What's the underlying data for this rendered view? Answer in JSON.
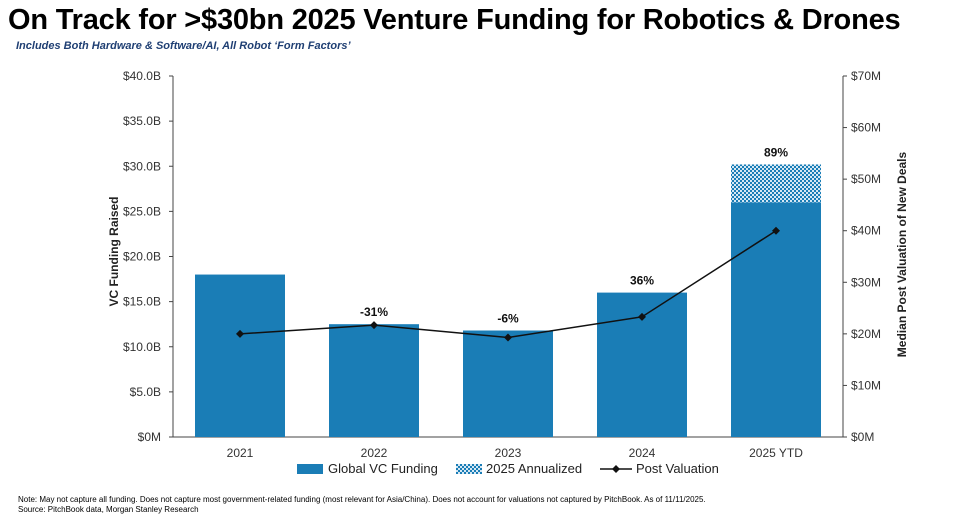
{
  "header": {
    "title": "On Track for >$30bn 2025 Venture Funding for Robotics & Drones",
    "subtitle": "Includes Both Hardware & Software/AI, All Robot ‘Form Factors’"
  },
  "footer": {
    "note": "Note: May not capture all funding. Does not capture most government-related funding (most relevant for Asia/China). Does not account for valuations not captured by PitchBook. As of 11/11/2025.",
    "source": "Source: PitchBook data, Morgan Stanley Research"
  },
  "colors": {
    "bar": "#1a7db6",
    "annualized_bg": "#d6e8f4",
    "line": "#111111",
    "axis": "#444444"
  },
  "chart_data": {
    "type": "bar",
    "categories": [
      "2021",
      "2022",
      "2023",
      "2024",
      "2025 YTD"
    ],
    "series": [
      {
        "name": "Global VC Funding",
        "type": "bar",
        "axis": "left",
        "values": [
          18.0,
          12.5,
          11.8,
          16.0,
          26.0
        ]
      },
      {
        "name": "2025 Annualized",
        "type": "bar-stack",
        "axis": "left",
        "values": [
          null,
          null,
          null,
          null,
          4.2
        ]
      },
      {
        "name": "Post Valuation",
        "type": "line",
        "axis": "right",
        "values": [
          20.0,
          21.7,
          19.3,
          23.3,
          40.0
        ]
      }
    ],
    "bar_labels": [
      "",
      "-31%",
      "-6%",
      "36%",
      "89%"
    ],
    "ylabel": "VC Funding Raised",
    "y2label": "Median Post Valuation of New Deals",
    "ylim": [
      0,
      40
    ],
    "y2lim": [
      0,
      70
    ],
    "y_ticks": [
      "$0M",
      "$5.0B",
      "$10.0B",
      "$15.0B",
      "$20.0B",
      "$25.0B",
      "$30.0B",
      "$35.0B",
      "$40.0B"
    ],
    "y2_ticks": [
      "$0M",
      "$10M",
      "$20M",
      "$30M",
      "$40M",
      "$50M",
      "$60M",
      "$70M"
    ],
    "legend_position": "bottom",
    "grid": false
  }
}
